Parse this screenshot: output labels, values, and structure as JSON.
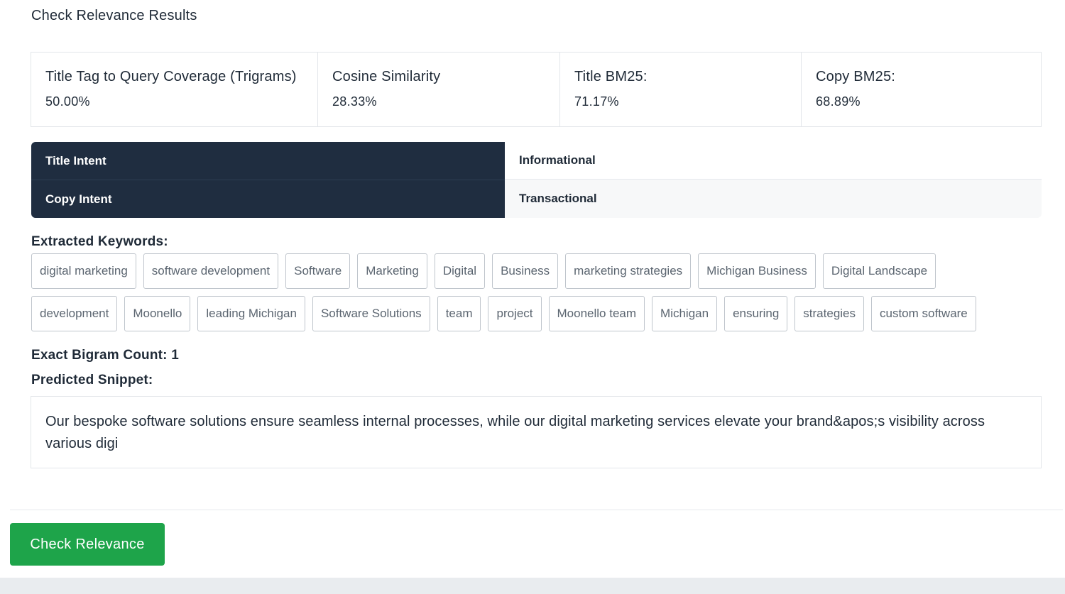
{
  "results": {
    "title": "Check Relevance Results"
  },
  "metrics": [
    {
      "label": "Title Tag to Query Coverage (Trigrams)",
      "value": "50.00%"
    },
    {
      "label": "Cosine Similarity",
      "value": "28.33%"
    },
    {
      "label": "Title BM25:",
      "value": "71.17%"
    },
    {
      "label": "Copy BM25:",
      "value": "68.89%"
    }
  ],
  "intents": [
    {
      "key": "Title Intent",
      "value": "Informational"
    },
    {
      "key": "Copy Intent",
      "value": "Transactional"
    }
  ],
  "keywords": {
    "label": "Extracted Keywords:",
    "row1": [
      "digital marketing",
      "software development",
      "Software",
      "Marketing",
      "Digital",
      "Business",
      "marketing strategies",
      "Michigan Business",
      "Digital Landscape"
    ],
    "row2": [
      "development",
      "Moonello",
      "leading Michigan",
      "Software Solutions",
      "team",
      "project",
      "Moonello team",
      "Michigan",
      "ensuring",
      "strategies",
      "custom software"
    ]
  },
  "bigram": {
    "label": "Exact Bigram Count: 1"
  },
  "snippet": {
    "label": "Predicted Snippet:",
    "text": "Our bespoke software solutions ensure seamless internal processes, while our digital marketing services elevate your brand&apos;s visibility across various digi"
  },
  "actions": {
    "check_label": "Check Relevance"
  },
  "colors": {
    "intent_header_bg": "#1f2d40",
    "button_bg": "#1ea44a"
  }
}
